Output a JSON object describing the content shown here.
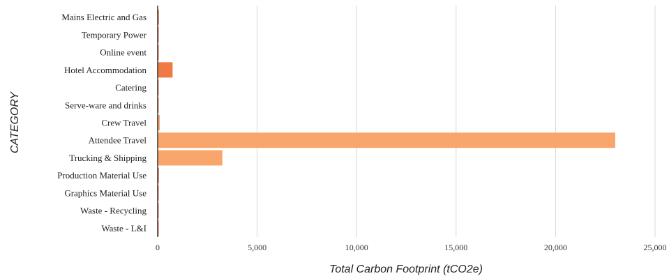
{
  "chart_data": {
    "type": "bar",
    "orientation": "horizontal",
    "title": "",
    "xlabel": "Total Carbon Footprint (tCO2e)",
    "ylabel": "CATEGORY",
    "xlim": [
      0,
      25000
    ],
    "x_ticks": [
      0,
      5000,
      10000,
      15000,
      20000,
      25000
    ],
    "x_tick_labels": [
      "0",
      "5,000",
      "10,000",
      "15,000",
      "20,000",
      "25,000"
    ],
    "grid": "vertical",
    "categories": [
      "Mains Electric and Gas",
      "Temporary Power",
      "Online event",
      "Hotel Accommodation",
      "Catering",
      "Serve-ware and drinks",
      "Crew Travel",
      "Attendee Travel",
      "Trucking & Shipping",
      "Production Material Use",
      "Graphics Material Use",
      "Waste - Recycling",
      "Waste - L&I"
    ],
    "values": [
      60,
      20,
      20,
      750,
      20,
      15,
      100,
      23000,
      3250,
      60,
      15,
      10,
      20
    ],
    "colors": [
      "#e8693a",
      "#e8693a",
      "#e8693a",
      "#ef7a45",
      "#ef7a45",
      "#ef7a45",
      "#f29c64",
      "#f9a66c",
      "#f9a66c",
      "#e8693a",
      "#e8693a",
      "#e8693a",
      "#e8693a"
    ],
    "grid_color": "#d9d9d9",
    "axis_color": "#333333"
  }
}
